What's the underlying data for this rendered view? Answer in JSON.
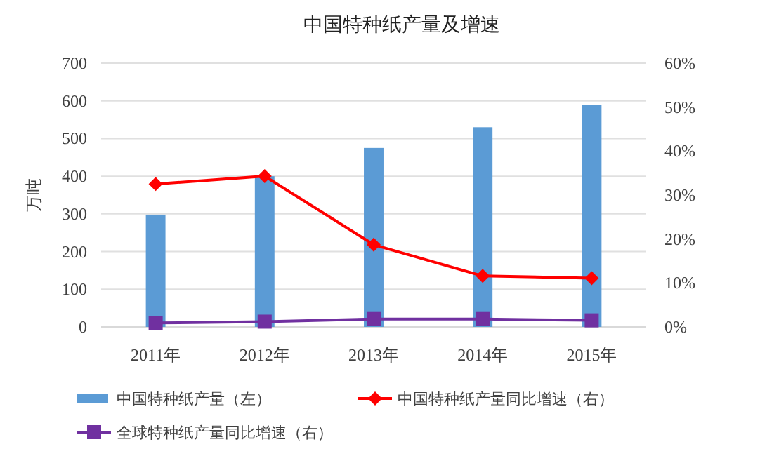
{
  "chart_data": {
    "type": "bar",
    "title": "中国特种纸产量及增速",
    "ylabel": "万吨",
    "categories": [
      "2011年",
      "2012年",
      "2013年",
      "2014年",
      "2015年"
    ],
    "series": [
      {
        "name": "中国特种纸产量（左）",
        "color": "#5b9bd5",
        "values": [
          298,
          400,
          475,
          530,
          590
        ]
      },
      {
        "name": "中国特种纸产量同比增速（右）",
        "type": "line",
        "axis": "y2",
        "color": "#ff0000",
        "marker": "diamond",
        "values": [
          32.5,
          34.3,
          18.7,
          11.6,
          11.1
        ]
      },
      {
        "name": "全球特种纸产量同比增速（右）",
        "type": "line",
        "axis": "y2",
        "color": "#7030a0",
        "marker": "square",
        "values": [
          0.9,
          1.2,
          1.8,
          1.8,
          1.5
        ]
      }
    ],
    "ylim": [
      0,
      700
    ],
    "yticks": [
      0,
      100,
      200,
      300,
      400,
      500,
      600,
      700
    ],
    "y2lim": [
      0,
      60
    ],
    "y2ticks": [
      {
        "value": 0,
        "label": "0%"
      },
      {
        "value": 10,
        "label": "10%"
      },
      {
        "value": 20,
        "label": "20%"
      },
      {
        "value": 30,
        "label": "30%"
      },
      {
        "value": 40,
        "label": "40%"
      },
      {
        "value": 50,
        "label": "50%"
      },
      {
        "value": 60,
        "label": "60%"
      }
    ],
    "grid": "y",
    "legend": "bottom"
  }
}
